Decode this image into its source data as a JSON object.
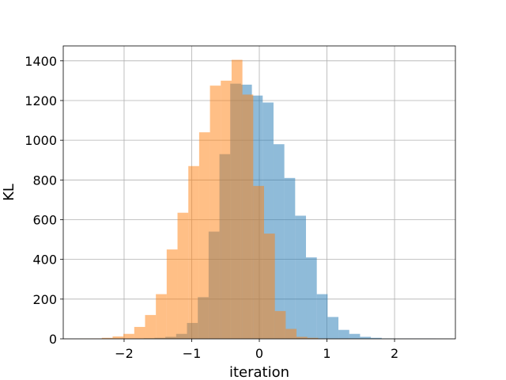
{
  "chart_data": {
    "type": "histogram",
    "title": "",
    "xlabel": "iteration",
    "ylabel": "KL",
    "xlim": [
      -2.9,
      2.9
    ],
    "ylim": [
      0,
      1475
    ],
    "xticks": [
      -2,
      -1,
      0,
      1,
      2
    ],
    "xtick_labels": [
      "−2",
      "−1",
      "0",
      "1",
      "2"
    ],
    "yticks": [
      0,
      200,
      400,
      600,
      800,
      1000,
      1200,
      1400
    ],
    "ytick_labels": [
      "0",
      "200",
      "400",
      "600",
      "800",
      "1000",
      "1200",
      "1400"
    ],
    "grid": true,
    "legend": false,
    "series": [
      {
        "color": "#1f77b4",
        "opacity": 0.5,
        "bin_edges": [
          -1.87,
          -1.71,
          -1.55,
          -1.39,
          -1.23,
          -1.07,
          -0.91,
          -0.75,
          -0.59,
          -0.43,
          -0.27,
          -0.11,
          0.05,
          0.21,
          0.37,
          0.53,
          0.69,
          0.85,
          1.01,
          1.17,
          1.33,
          1.49,
          1.65,
          1.81,
          1.97,
          2.13,
          2.29,
          2.45,
          2.61
        ],
        "counts": [
          1,
          3,
          5,
          10,
          25,
          80,
          210,
          540,
          930,
          1285,
          1280,
          1225,
          1190,
          980,
          810,
          620,
          410,
          225,
          110,
          45,
          25,
          10,
          5,
          2,
          1,
          1,
          1,
          1
        ]
      },
      {
        "color": "#ff7f0e",
        "opacity": 0.5,
        "bin_edges": [
          -2.65,
          -2.49,
          -2.33,
          -2.17,
          -2.01,
          -1.85,
          -1.69,
          -1.53,
          -1.37,
          -1.21,
          -1.05,
          -0.89,
          -0.73,
          -0.57,
          -0.41,
          -0.25,
          -0.09,
          0.07,
          0.23,
          0.39,
          0.55,
          0.71,
          0.87,
          1.03,
          1.19,
          1.35
        ],
        "counts": [
          1,
          2,
          5,
          12,
          25,
          60,
          120,
          225,
          450,
          635,
          870,
          1040,
          1275,
          1300,
          1405,
          1230,
          770,
          530,
          140,
          50,
          10,
          5,
          2,
          1,
          1
        ]
      }
    ]
  }
}
